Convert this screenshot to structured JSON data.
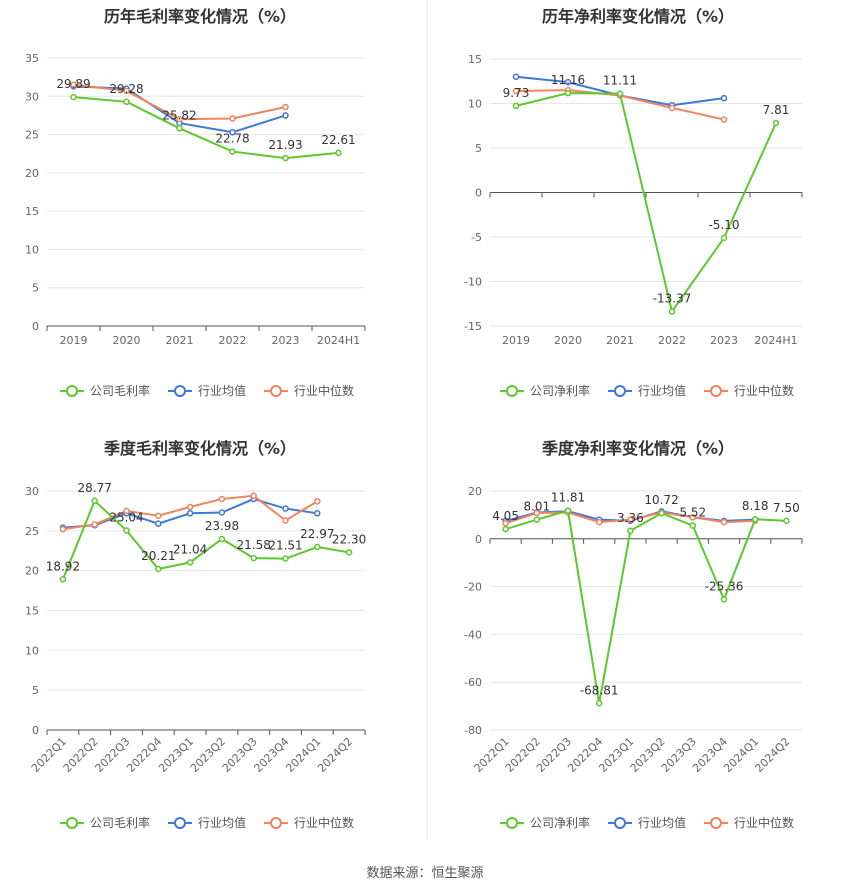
{
  "colors": {
    "company": "#5cc82d",
    "avg": "#3f78db",
    "median": "#f0845e",
    "grid": "#e6e6e6",
    "axis": "#555555"
  },
  "footer": {
    "source": "数据来源：恒生聚源"
  },
  "chart_data": [
    {
      "id": "annual-gross",
      "type": "line",
      "title": "历年毛利率变化情况（%）",
      "categories": [
        "2019",
        "2020",
        "2021",
        "2022",
        "2023",
        "2024H1"
      ],
      "ylim": [
        0,
        35
      ],
      "yticks": [
        0,
        5,
        10,
        15,
        20,
        25,
        30,
        35
      ],
      "rotate_x": false,
      "series": [
        {
          "name": "公司毛利率",
          "key": "company",
          "values": [
            29.89,
            29.28,
            25.82,
            22.78,
            21.93,
            22.61
          ],
          "labels": [
            "29.89",
            "29.28",
            "25.82",
            "22.78",
            "21.93",
            "22.61"
          ]
        },
        {
          "name": "行业均值",
          "key": "avg",
          "values": [
            31.3,
            31.0,
            26.5,
            25.3,
            27.5,
            null
          ]
        },
        {
          "name": "行业中位数",
          "key": "median",
          "values": [
            31.5,
            30.7,
            27.0,
            27.1,
            28.6,
            null
          ]
        }
      ],
      "legend": "bottom-center"
    },
    {
      "id": "annual-net",
      "type": "line",
      "title": "历年净利率变化情况（%）",
      "categories": [
        "2019",
        "2020",
        "2021",
        "2022",
        "2023",
        "2024H1"
      ],
      "ylim": [
        -15,
        15
      ],
      "yticks": [
        -15,
        -10,
        -5,
        0,
        5,
        10,
        15
      ],
      "rotate_x": false,
      "series": [
        {
          "name": "公司净利率",
          "key": "company",
          "values": [
            9.73,
            11.16,
            11.11,
            -13.37,
            -5.1,
            7.81
          ],
          "labels": [
            "9.73",
            "11.16",
            "11.11",
            "-13.37",
            "-5.10",
            "7.81"
          ]
        },
        {
          "name": "行业均值",
          "key": "avg",
          "values": [
            13.0,
            12.4,
            10.9,
            9.8,
            10.6,
            null
          ]
        },
        {
          "name": "行业中位数",
          "key": "median",
          "values": [
            11.4,
            11.5,
            10.9,
            9.5,
            8.2,
            null
          ]
        }
      ],
      "legend": "bottom-center"
    },
    {
      "id": "quarter-gross",
      "type": "line",
      "title": "季度毛利率变化情况（%）",
      "categories": [
        "2022Q1",
        "2022Q2",
        "2022Q3",
        "2022Q4",
        "2023Q1",
        "2023Q2",
        "2023Q3",
        "2023Q4",
        "2024Q1",
        "2024Q2"
      ],
      "ylim": [
        0,
        30
      ],
      "yticks": [
        0,
        5,
        10,
        15,
        20,
        25,
        30
      ],
      "rotate_x": true,
      "series": [
        {
          "name": "公司毛利率",
          "key": "company",
          "values": [
            18.92,
            28.77,
            25.04,
            20.21,
            21.04,
            23.98,
            21.58,
            21.51,
            22.97,
            22.3
          ],
          "labels": [
            "18.92",
            "28.77",
            "25.04",
            "20.21",
            "21.04",
            "23.98",
            "21.58",
            "21.51",
            "22.97",
            "22.30"
          ]
        },
        {
          "name": "行业均值",
          "key": "avg",
          "values": [
            25.4,
            25.7,
            27.2,
            25.9,
            27.2,
            27.3,
            29.0,
            27.8,
            27.2,
            null
          ]
        },
        {
          "name": "行业中位数",
          "key": "median",
          "values": [
            25.2,
            25.8,
            27.5,
            26.9,
            28.0,
            29.0,
            29.4,
            26.3,
            28.7,
            null
          ]
        }
      ],
      "legend": "bottom-center"
    },
    {
      "id": "quarter-net",
      "type": "line",
      "title": "季度净利率变化情况（%）",
      "categories": [
        "2022Q1",
        "2022Q2",
        "2022Q3",
        "2022Q4",
        "2023Q1",
        "2023Q2",
        "2023Q3",
        "2023Q4",
        "2024Q1",
        "2024Q2"
      ],
      "ylim": [
        -80,
        20
      ],
      "yticks": [
        -80,
        -60,
        -40,
        -20,
        0,
        20
      ],
      "rotate_x": true,
      "series": [
        {
          "name": "公司净利率",
          "key": "company",
          "values": [
            4.05,
            8.01,
            11.81,
            -68.81,
            3.36,
            10.72,
            5.52,
            -25.36,
            8.18,
            7.5
          ],
          "labels": [
            "4.05",
            "8.01",
            "11.81",
            "-68.81",
            "3.36",
            "10.72",
            "5.52",
            "-25.36",
            "8.18",
            "7.50"
          ]
        },
        {
          "name": "行业均值",
          "key": "avg",
          "values": [
            7.5,
            11.0,
            11.5,
            8.0,
            7.5,
            11.5,
            9.0,
            7.5,
            8.0,
            null
          ]
        },
        {
          "name": "行业中位数",
          "key": "median",
          "values": [
            6.5,
            10.8,
            11.0,
            7.0,
            8.0,
            11.0,
            9.0,
            7.0,
            7.5,
            null
          ]
        }
      ],
      "legend": "bottom-center"
    }
  ]
}
